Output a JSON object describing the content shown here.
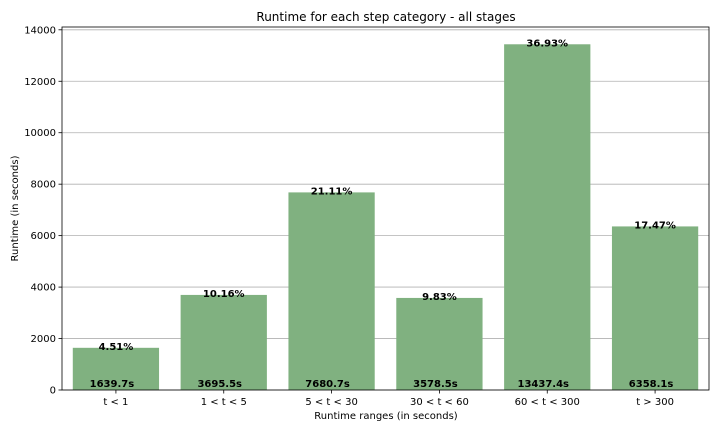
{
  "chart_data": {
    "type": "bar",
    "title": "Runtime for each step category - all stages",
    "xlabel": "Runtime ranges (in seconds)",
    "ylabel": "Runtime (in seconds)",
    "categories": [
      "t < 1",
      "1 < t < 5",
      "5 < t < 30",
      "30 < t < 60",
      "60 < t < 300",
      "t > 300"
    ],
    "values": [
      1639.7,
      3695.5,
      7680.7,
      3578.5,
      13437.4,
      6358.1
    ],
    "value_labels": [
      "1639.7s",
      "3695.5s",
      "7680.7s",
      "3578.5s",
      "13437.4s",
      "6358.1s"
    ],
    "percent_labels": [
      "4.51%",
      "10.16%",
      "21.11%",
      "9.83%",
      "36.93%",
      "17.47%"
    ],
    "yticks": [
      0,
      2000,
      4000,
      6000,
      8000,
      10000,
      12000,
      14000
    ],
    "ylim": [
      0,
      14109
    ],
    "grid": "horizontal",
    "bar_color": "#80b180"
  }
}
